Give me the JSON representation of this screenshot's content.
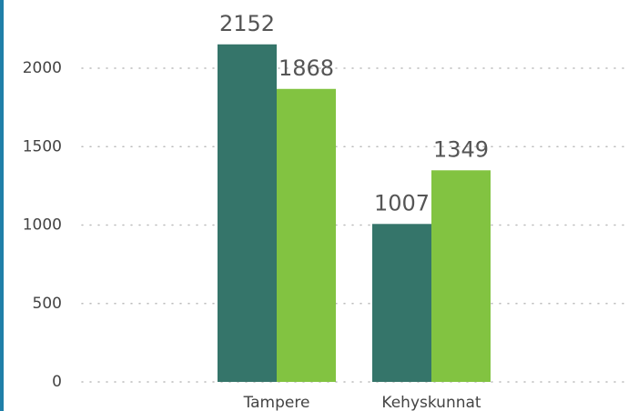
{
  "chart_data": {
    "type": "bar",
    "categories": [
      "Tampere",
      "Kehyskunnat"
    ],
    "series": [
      {
        "color": "#35756a",
        "values": [
          2152,
          1007
        ]
      },
      {
        "color": "#82c341",
        "values": [
          1868,
          1349
        ]
      }
    ],
    "ylim": [
      0,
      2200
    ],
    "yticks": [
      0,
      500,
      1000,
      1500,
      2000
    ],
    "grid": true
  }
}
